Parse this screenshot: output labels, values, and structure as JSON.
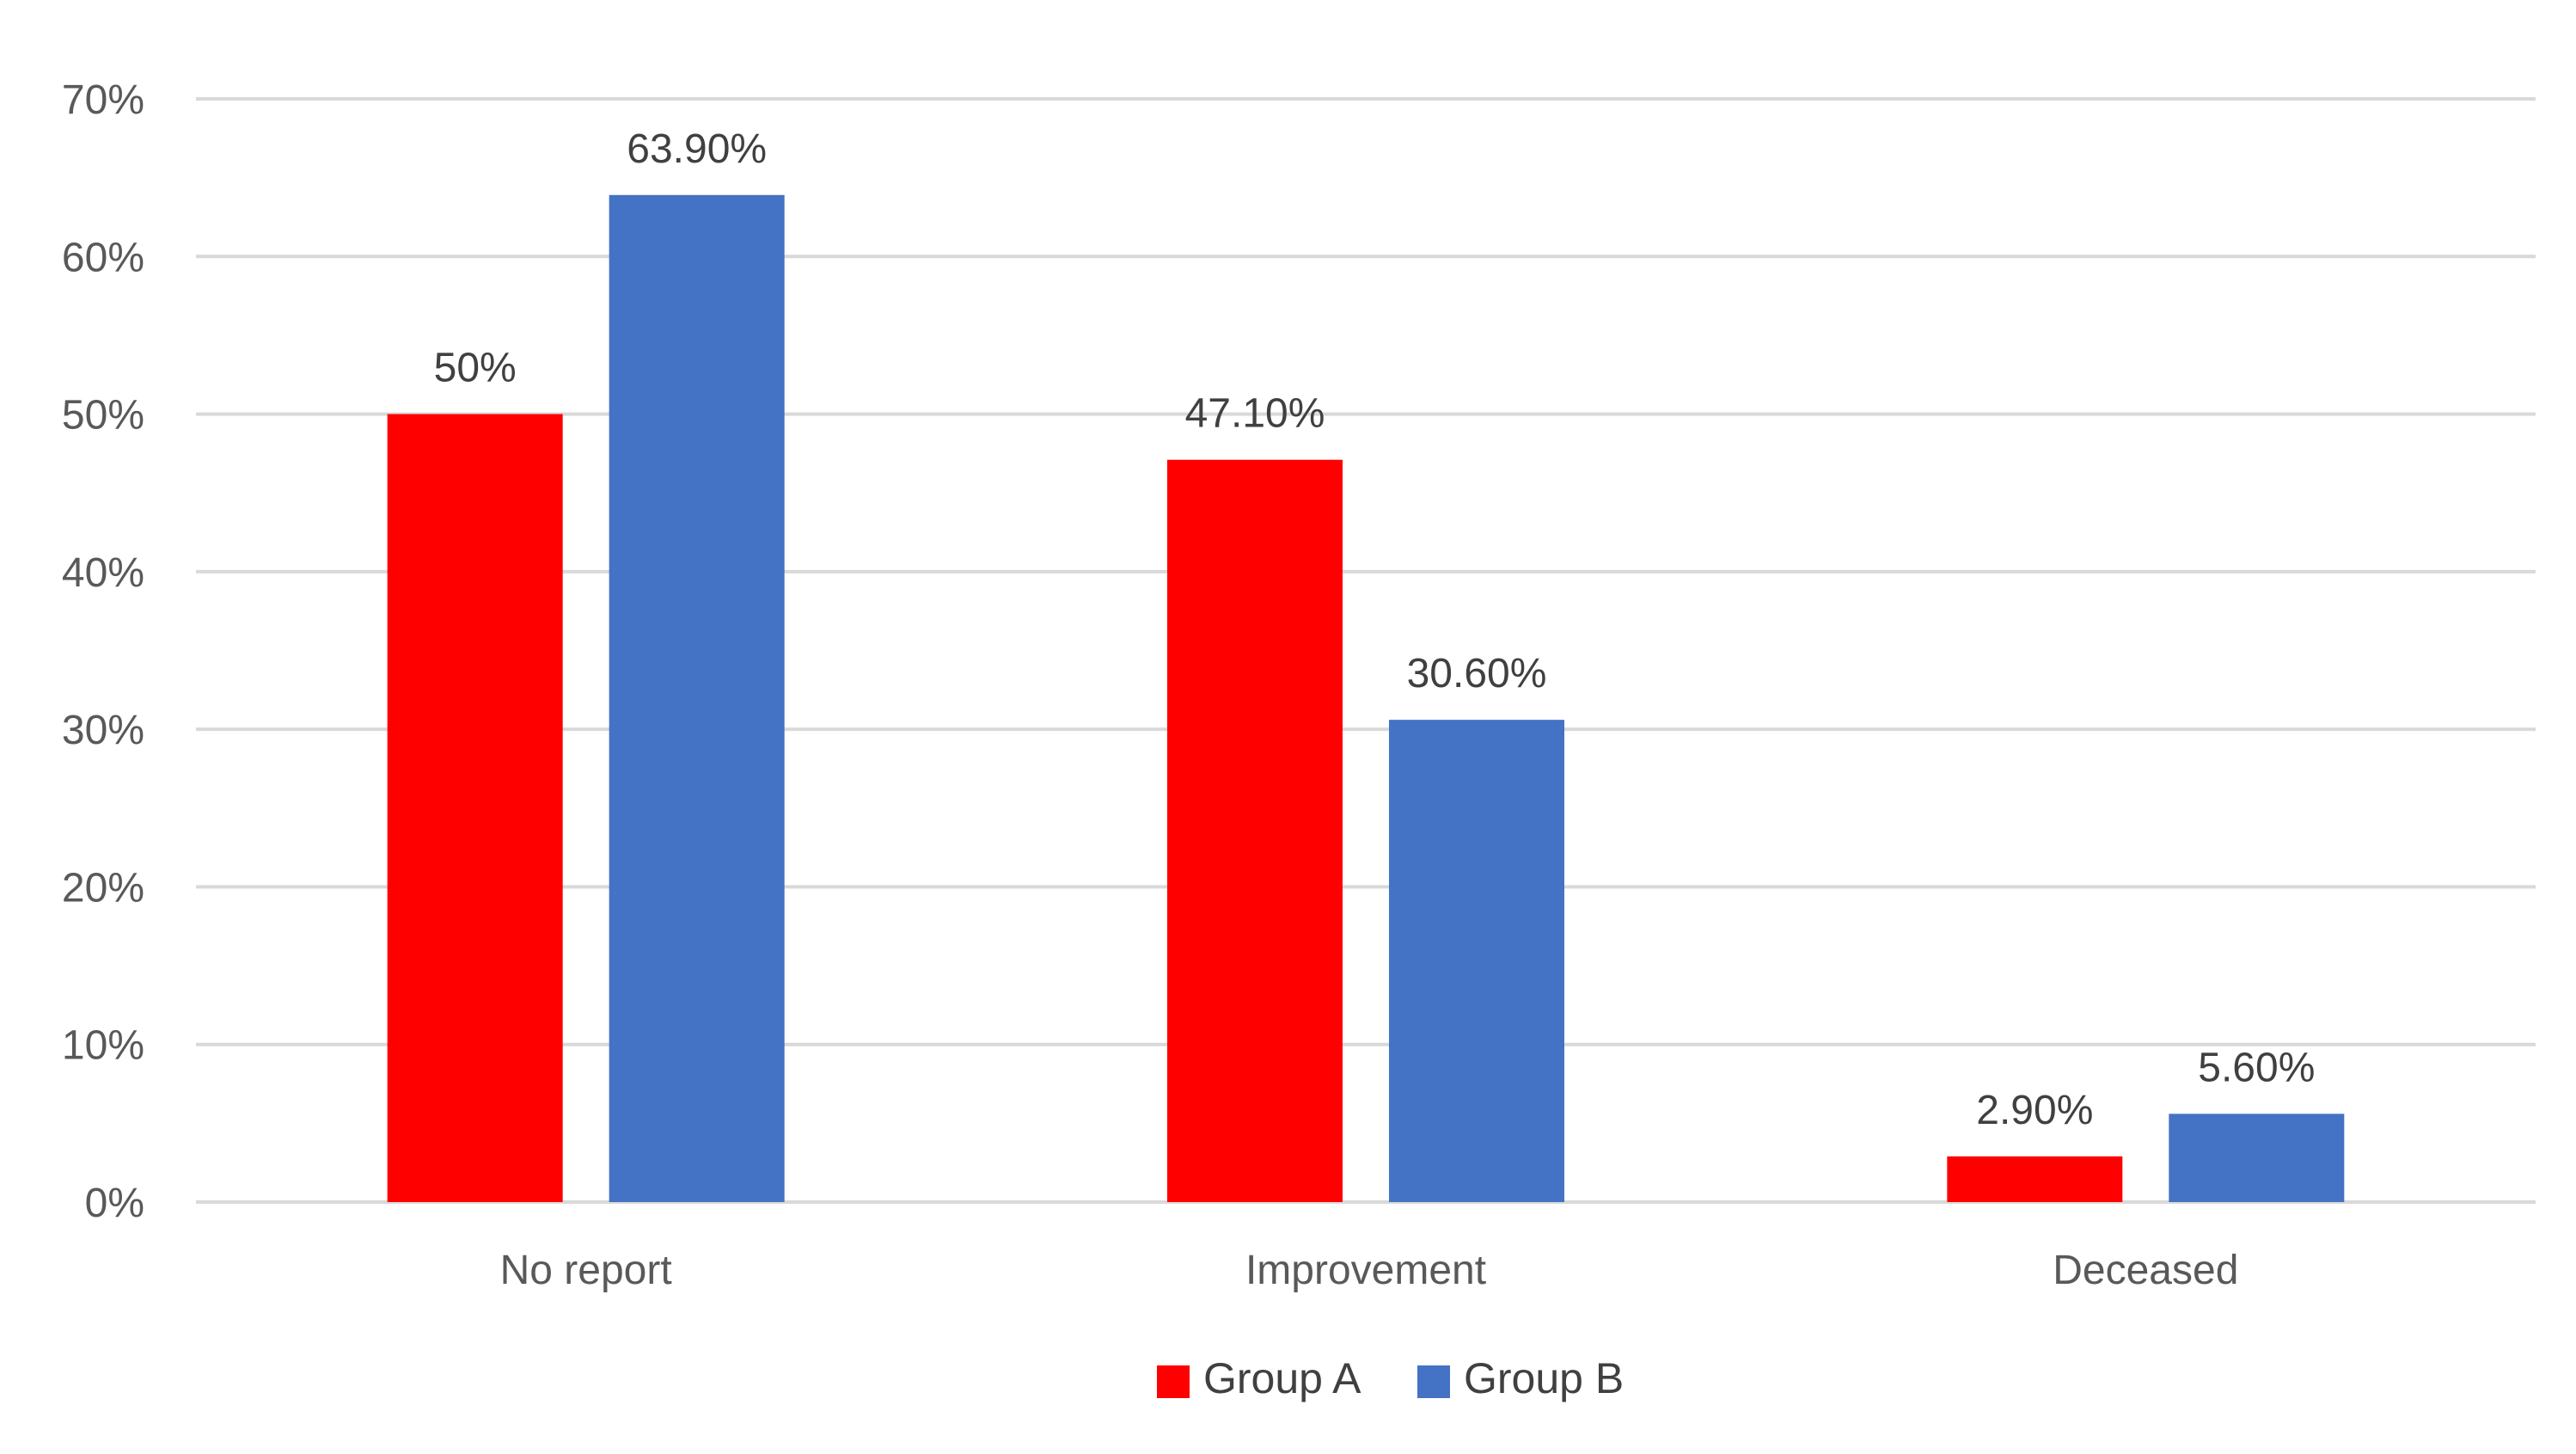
{
  "chart_data": {
    "type": "bar",
    "title": "",
    "xlabel": "",
    "ylabel": "",
    "categories": [
      "No report",
      "Improvement",
      "Deceased"
    ],
    "series": [
      {
        "name": "Group A",
        "color": "#ff0000",
        "values": [
          50,
          47.1,
          2.9
        ],
        "labels": [
          "50%",
          "47.10%",
          "2.90%"
        ]
      },
      {
        "name": "Group B",
        "color": "#4472c4",
        "values": [
          63.9,
          30.6,
          5.6
        ],
        "labels": [
          "63.90%",
          "30.60%",
          "5.60%"
        ]
      }
    ],
    "ylim": [
      0,
      70
    ],
    "yticks": [
      0,
      10,
      20,
      30,
      40,
      50,
      60,
      70
    ],
    "ytick_labels": [
      "0%",
      "10%",
      "20%",
      "30%",
      "40%",
      "50%",
      "60%",
      "70%"
    ],
    "grid": true,
    "legend": "bottom-center"
  }
}
